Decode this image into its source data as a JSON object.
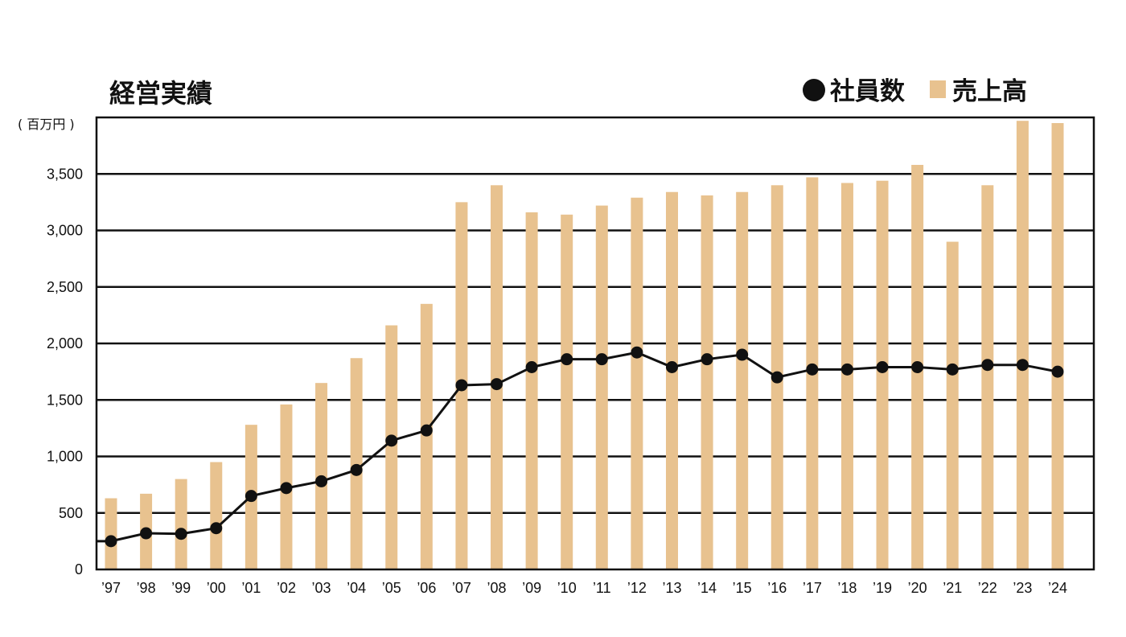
{
  "chart_data": {
    "type": "bar",
    "title": "経営実績",
    "unit_label": "( 百万円 )",
    "legend": [
      {
        "name": "社員数",
        "marker": "●"
      },
      {
        "name": "売上高",
        "marker": "■"
      }
    ],
    "colors": {
      "bar": "#e8c28f",
      "line": "#111111",
      "grid": "#111111"
    },
    "ylim": [
      0,
      4000
    ],
    "yticks": [
      0,
      500,
      1000,
      1500,
      2000,
      2500,
      3000,
      3500
    ],
    "ytick_labels": [
      "0",
      "500",
      "1,000",
      "1,500",
      "2,000",
      "2,500",
      "3,000",
      "3,500"
    ],
    "categories": [
      "’97",
      "’98",
      "’99",
      "’00",
      "’01",
      "’02",
      "’03",
      "’04",
      "’05",
      "’06",
      "’07",
      "’08",
      "’09",
      "’10",
      "’11",
      "’12",
      "’13",
      "’14",
      "’15",
      "’16",
      "’17",
      "’18",
      "’19",
      "’20",
      "’21",
      "’22",
      "’23",
      "’24"
    ],
    "series": [
      {
        "name": "売上高",
        "kind": "bar",
        "values": [
          630,
          670,
          800,
          950,
          1280,
          1460,
          1650,
          1870,
          2160,
          2350,
          3250,
          3400,
          3160,
          3140,
          3220,
          3290,
          3340,
          3310,
          3340,
          3400,
          3470,
          3420,
          3440,
          3580,
          2900,
          3400,
          3970,
          3950
        ]
      },
      {
        "name": "社員数",
        "kind": "line",
        "values": [
          250,
          320,
          315,
          365,
          650,
          720,
          780,
          880,
          1140,
          1230,
          1630,
          1640,
          1790,
          1860,
          1860,
          1920,
          1790,
          1860,
          1900,
          1700,
          1770,
          1770,
          1790,
          1790,
          1770,
          1810,
          1810,
          1750
        ]
      }
    ],
    "grid": true
  }
}
